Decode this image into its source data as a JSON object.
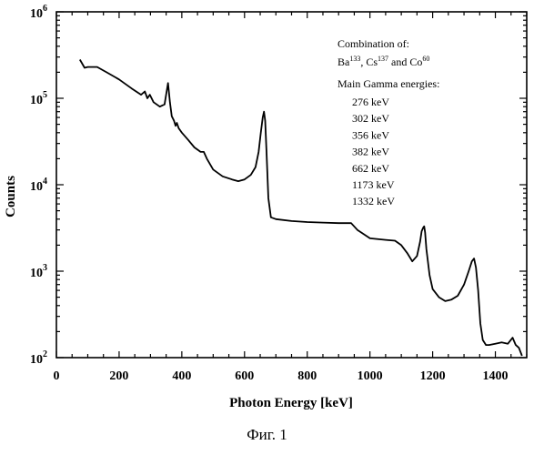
{
  "caption": "Фиг. 1",
  "chart_data": {
    "type": "line",
    "title": "",
    "xlabel": "Photon Energy  [keV]",
    "ylabel": "Counts",
    "xlim": [
      0,
      1500
    ],
    "ylim": [
      100,
      1000000
    ],
    "y_scale": "log",
    "x_ticks": [
      0,
      200,
      400,
      600,
      800,
      1000,
      1200,
      1400
    ],
    "x_tick_labels": [
      "0",
      "200",
      "400",
      "600",
      "800",
      "1000",
      "1200",
      "1400"
    ],
    "y_ticks": [
      100,
      1000,
      10000,
      100000,
      1000000
    ],
    "y_tick_labels": [
      {
        "base": "10",
        "exp": "2"
      },
      {
        "base": "10",
        "exp": "3"
      },
      {
        "base": "10",
        "exp": "4"
      },
      {
        "base": "10",
        "exp": "5"
      },
      {
        "base": "10",
        "exp": "6"
      }
    ],
    "grid": false,
    "annotation": {
      "heading": "Combination of:",
      "isotopes": [
        {
          "name": "Ba",
          "mass": "133",
          "after": ", "
        },
        {
          "name": "Cs",
          "mass": "137",
          "after": " and "
        },
        {
          "name": "Co",
          "mass": "60",
          "after": ""
        }
      ],
      "energies_heading": "Main Gamma energies:",
      "energies": [
        "276 keV",
        "302 keV",
        "356 keV",
        "382 keV",
        "662 keV",
        "1173 keV",
        "1332 keV"
      ]
    },
    "series": [
      {
        "x": [
          75,
          90,
          100,
          130,
          160,
          200,
          240,
          270,
          282,
          290,
          298,
          310,
          330,
          345,
          350,
          356,
          362,
          368,
          375,
          380,
          384,
          390,
          400,
          420,
          440,
          460,
          470,
          480,
          500,
          530,
          560,
          580,
          600,
          620,
          635,
          645,
          652,
          658,
          662,
          666,
          670,
          676,
          684,
          700,
          750,
          800,
          850,
          900,
          940,
          960,
          1000,
          1050,
          1080,
          1100,
          1120,
          1135,
          1150,
          1160,
          1165,
          1170,
          1173,
          1176,
          1180,
          1190,
          1200,
          1220,
          1240,
          1260,
          1280,
          1300,
          1315,
          1325,
          1332,
          1338,
          1345,
          1352,
          1360,
          1370,
          1380,
          1400,
          1420,
          1440,
          1455,
          1465,
          1475,
          1485
        ],
        "y": [
          280000,
          225000,
          230000,
          230000,
          200000,
          165000,
          130000,
          110000,
          120000,
          100000,
          110000,
          90000,
          80000,
          85000,
          110000,
          150000,
          90000,
          62000,
          55000,
          48000,
          52000,
          45000,
          40000,
          33000,
          27000,
          24000,
          24000,
          20000,
          15000,
          12500,
          11500,
          11000,
          11500,
          13000,
          16000,
          24000,
          40000,
          60000,
          70000,
          55000,
          25000,
          7000,
          4200,
          4000,
          3800,
          3700,
          3650,
          3600,
          3600,
          3000,
          2400,
          2300,
          2250,
          2000,
          1600,
          1300,
          1500,
          2200,
          2900,
          3200,
          3300,
          2800,
          1800,
          900,
          620,
          500,
          450,
          470,
          520,
          700,
          1000,
          1300,
          1400,
          1100,
          600,
          250,
          160,
          140,
          140,
          145,
          150,
          145,
          170,
          140,
          130,
          105
        ]
      }
    ]
  },
  "colors": {
    "line": "#000000",
    "axis": "#000000",
    "background": "#ffffff"
  }
}
